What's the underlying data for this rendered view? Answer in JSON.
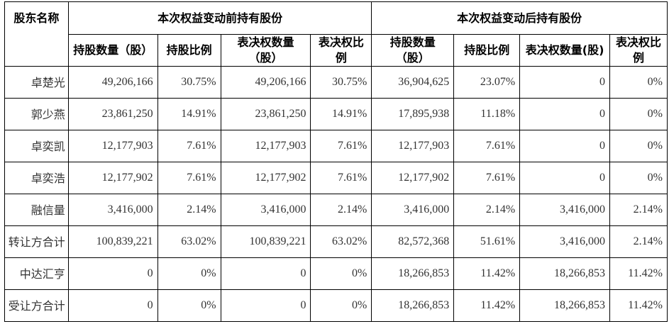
{
  "headers": {
    "shareholder": "股东名称",
    "before_group": "本次权益变动前持有股份",
    "after_group": "本次权益变动后持有股份",
    "before_cols": [
      "持股数量（股）",
      "持股比例",
      "表决权数量（股）",
      "表决权比例"
    ],
    "after_cols": [
      "持股数量（股）",
      "持股比例",
      "表决权数量(股)",
      "表决权比例"
    ]
  },
  "rows": [
    {
      "name": "卓楚光",
      "cells": [
        "49,206,166",
        "30.75%",
        "49,206,166",
        "30.75%",
        "36,904,625",
        "23.07%",
        "0",
        "0%"
      ]
    },
    {
      "name": "郭少燕",
      "cells": [
        "23,861,250",
        "14.91%",
        "23,861,250",
        "14.91%",
        "17,895,938",
        "11.18%",
        "0",
        "0%"
      ]
    },
    {
      "name": "卓奕凯",
      "cells": [
        "12,177,903",
        "7.61%",
        "12,177,903",
        "7.61%",
        "12,177,903",
        "7.61%",
        "0",
        "0%"
      ]
    },
    {
      "name": "卓奕浩",
      "cells": [
        "12,177,902",
        "7.61%",
        "12,177,902",
        "7.61%",
        "12,177,902",
        "7.61%",
        "0",
        "0%"
      ]
    },
    {
      "name": "融信量",
      "cells": [
        "3,416,000",
        "2.14%",
        "3,416,000",
        "2.14%",
        "3,416,000",
        "2.14%",
        "3,416,000",
        "2.14%"
      ]
    },
    {
      "name": "转让方合计",
      "cells": [
        "100,839,221",
        "63.02%",
        "100,839,221",
        "63.02%",
        "82,572,368",
        "51.61%",
        "3,416,000",
        "2.14%"
      ]
    },
    {
      "name": "中达汇亨",
      "cells": [
        "0",
        "0%",
        "0",
        "0%",
        "18,266,853",
        "11.42%",
        "18,266,853",
        "11.42%"
      ]
    },
    {
      "name": "受让方合计",
      "cells": [
        "0",
        "0%",
        "0",
        "0%",
        "18,266,853",
        "11.42%",
        "18,266,853",
        "11.42%"
      ]
    }
  ]
}
